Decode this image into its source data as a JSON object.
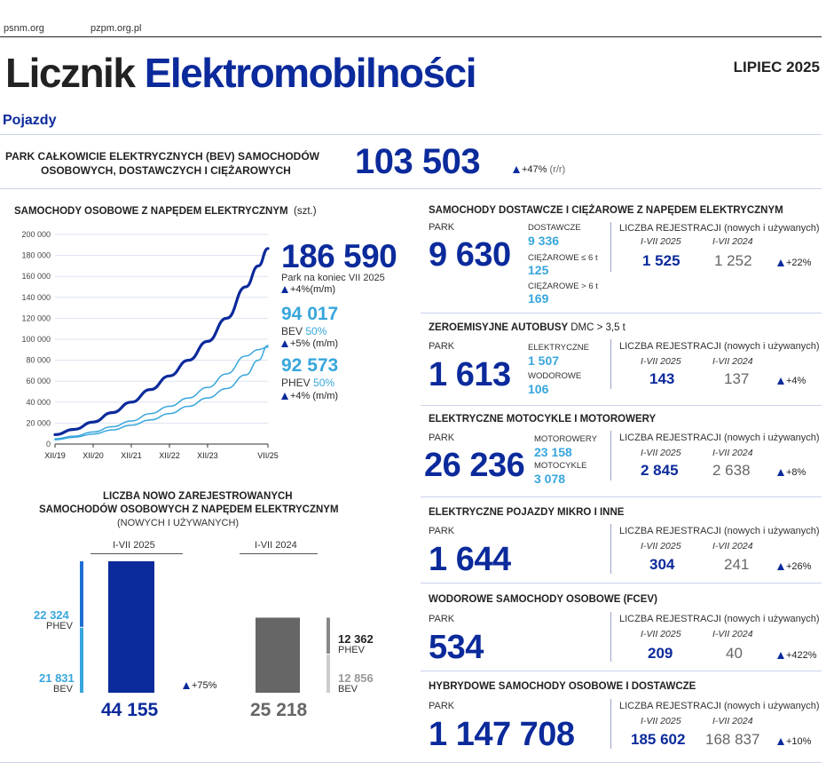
{
  "header": {
    "site1": "psnm.org",
    "site2": "pzpm.org.pl",
    "title_part1": "Licznik",
    "title_part2": "Elektromobilności",
    "period": "LIPIEC 2025",
    "section": "Pojazdy"
  },
  "top_stat": {
    "label_line1": "PARK CAŁKOWICIE ELEKTRYCZNYCH (BEV) SAMOCHODÓW",
    "label_line2": "OSOBOWYCH, DOSTAWCZYCH I CIĘŻAROWYCH",
    "value": "103 503",
    "change": "+47%",
    "change_note": "(r/r)"
  },
  "passenger": {
    "title": "SAMOCHODY OSOBOWE Z NAPĘDEM ELEKTRYCZNYM",
    "unit": "(szt.)",
    "total": "186 590",
    "total_note": "Park na koniec VII 2025",
    "total_change": "+4%",
    "mm": "(m/m)",
    "bev_value": "94 017",
    "bev_label": "BEV",
    "bev_share": "50%",
    "bev_change": "+5%",
    "phev_value": "92 573",
    "phev_label": "PHEV",
    "phev_share": "50%",
    "phev_change": "+4%"
  },
  "registrations": {
    "title_line1": "LICZBA NOWO ZAREJESTROWANYCH",
    "title_line2": "SAMOCHODÓW OSOBOWYCH Z NAPĘDEM ELEKTRYCZNYM",
    "title_line3": "(NOWYCH I UŻYWANYCH)",
    "period_2025": "I-VII 2025",
    "period_2024": "I-VII 2024",
    "phev_2025": "22 324",
    "bev_2025": "21 831",
    "total_2025": "44 155",
    "phev_2024": "12 362",
    "bev_2024": "12 856",
    "total_2024": "25 218",
    "phev_label": "PHEV",
    "bev_label": "BEV",
    "change": "+75%"
  },
  "right": {
    "reg_header": "LICZBA REJESTRACJI",
    "reg_note": "(nowych i używanych)",
    "y2025": "I-VII 2025",
    "y2024": "I-VII 2024",
    "park_label": "PARK",
    "vans": {
      "title": "SAMOCHODY DOSTAWCZE I CIĘŻAROWE Z NAPĘDEM ELEKTRYCZNYM",
      "park": "9 630",
      "sub1_label": "DOSTAWCZE",
      "sub1_value": "9 336",
      "sub2_label": "CIĘŻAROWE ≤ 6 t",
      "sub2_value": "125",
      "sub3_label": "CIĘŻAROWE > 6 t",
      "sub3_value": "169",
      "reg_2025": "1 525",
      "reg_2024": "1 252",
      "change": "+22%"
    },
    "buses": {
      "title": "ZEROEMISYJNE AUTOBUSY",
      "title_note": "DMC > 3,5 t",
      "park": "1 613",
      "sub1_label": "ELEKTRYCZNE",
      "sub1_value": "1 507",
      "sub2_label": "WODOROWE",
      "sub2_value": "106",
      "reg_2025": "143",
      "reg_2024": "137",
      "change": "+4%"
    },
    "moto": {
      "title": "ELEKTRYCZNE MOTOCYKLE I MOTOROWERY",
      "park": "26 236",
      "sub1_label": "MOTOROWERY",
      "sub1_value": "23 158",
      "sub2_label": "MOTOCYKLE",
      "sub2_value": "3 078",
      "reg_2025": "2 845",
      "reg_2024": "2 638",
      "change": "+8%"
    },
    "micro": {
      "title": "ELEKTRYCZNE POJAZDY MIKRO I INNE",
      "park": "1 644",
      "reg_2025": "304",
      "reg_2024": "241",
      "change": "+26%"
    },
    "fcev": {
      "title": "WODOROWE SAMOCHODY OSOBOWE (FCEV)",
      "park": "534",
      "reg_2025": "209",
      "reg_2024": "40",
      "change": "+422%"
    },
    "hybrid": {
      "title": "HYBRYDOWE SAMOCHODY OSOBOWE I DOSTAWCZE",
      "park": "1 147 708",
      "reg_2025": "185 602",
      "reg_2024": "168 837",
      "change": "+10%"
    }
  },
  "chart_data": [
    {
      "type": "line",
      "title": "SAMOCHODY OSOBOWE Z NAPĘDEM ELEKTRYCZNYM",
      "ylim": [
        0,
        200000
      ],
      "yticks": [
        0,
        20000,
        40000,
        60000,
        80000,
        100000,
        120000,
        140000,
        160000,
        180000,
        200000
      ],
      "ytick_labels": [
        "0",
        "20 000",
        "40 000",
        "60 000",
        "80 000",
        "100 000",
        "120 000",
        "140 000",
        "160 000",
        "180 000",
        "200 000"
      ],
      "xtick_labels": [
        "XII/19",
        "XII/20",
        "XII/21",
        "XII/22",
        "XII/23",
        "VII/25"
      ],
      "xtick_positions": [
        0,
        12,
        24,
        36,
        48,
        67
      ],
      "x_months_since_start": [
        0,
        6,
        12,
        18,
        24,
        30,
        36,
        42,
        48,
        54,
        60,
        64,
        67
      ],
      "series": [
        {
          "name": "186 590",
          "color": "#0b2a9b",
          "values": [
            9000,
            14000,
            21000,
            30000,
            40000,
            52000,
            65000,
            80000,
            98000,
            120000,
            150000,
            170000,
            186590
          ]
        },
        {
          "name": "BEV",
          "color": "#38a6dc",
          "values": [
            4000,
            6500,
            9500,
            13500,
            18000,
            23000,
            29000,
            36000,
            44000,
            53000,
            66000,
            80000,
            94017
          ]
        },
        {
          "name": "PHEV",
          "color": "#38a6dc",
          "values": [
            5000,
            7500,
            11500,
            16500,
            22000,
            29000,
            36000,
            44000,
            54000,
            67000,
            84000,
            90000,
            92573
          ]
        }
      ]
    },
    {
      "type": "bar",
      "title": "LICZBA NOWO ZAREJESTROWANYCH SAMOCHODÓW OSOBOWYCH Z NAPĘDEM ELEKTRYCZNYM",
      "categories": [
        "I-VII 2025",
        "I-VII 2024"
      ],
      "values": [
        44155,
        25218
      ],
      "series": [
        {
          "name": "PHEV",
          "values": [
            22324,
            12362
          ]
        },
        {
          "name": "BEV",
          "values": [
            21831,
            12856
          ]
        }
      ]
    }
  ]
}
